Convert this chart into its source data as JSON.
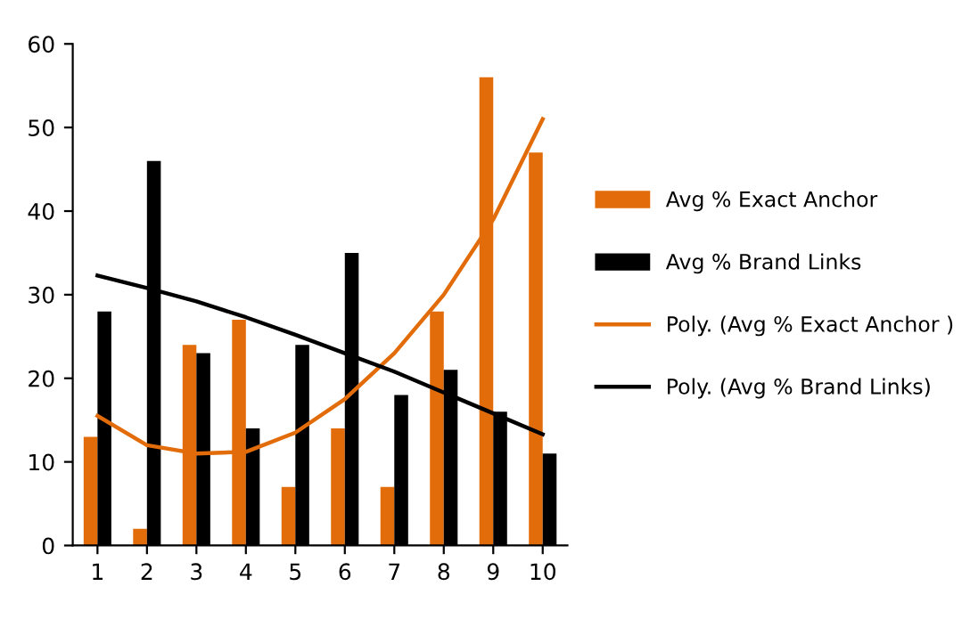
{
  "chart_data": {
    "type": "bar",
    "categories": [
      "1",
      "2",
      "3",
      "4",
      "5",
      "6",
      "7",
      "8",
      "9",
      "10"
    ],
    "series": [
      {
        "name": "Avg % Exact Anchor",
        "color": "#e36c0a",
        "values": [
          13,
          2,
          24,
          27,
          7,
          14,
          7,
          28,
          56,
          47
        ]
      },
      {
        "name": "Avg % Brand Links",
        "color": "#000000",
        "values": [
          28,
          46,
          23,
          14,
          24,
          35,
          18,
          21,
          16,
          11
        ]
      },
      {
        "name": "Poly. (Avg % Exact Anchor )",
        "type": "line",
        "color": "#e36c0a",
        "values": [
          15.5,
          12,
          11,
          11.2,
          13.5,
          17.5,
          23,
          30,
          39,
          51
        ]
      },
      {
        "name": "Poly. (Avg % Brand Links)",
        "type": "line",
        "color": "#000000",
        "values": [
          32.3,
          30.8,
          29.2,
          27.3,
          25.2,
          23,
          20.8,
          18.3,
          15.8,
          13.3
        ]
      }
    ],
    "ylim": [
      0,
      60
    ],
    "yticks": [
      0,
      10,
      20,
      30,
      40,
      50,
      60
    ],
    "grid": false,
    "legend": "right"
  }
}
